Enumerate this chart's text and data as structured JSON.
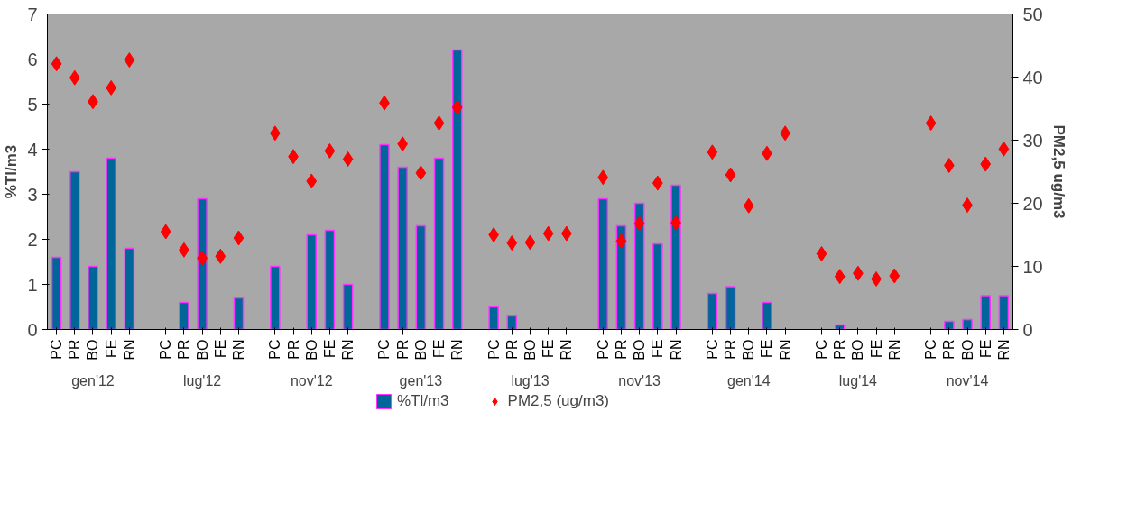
{
  "chart_data": {
    "type": "bar",
    "categories": [
      "PC",
      "PR",
      "BO",
      "FE",
      "RN",
      null,
      "PC",
      "PR",
      "BO",
      "FE",
      "RN",
      null,
      "PC",
      "PR",
      "BO",
      "FE",
      "RN",
      null,
      "PC",
      "PR",
      "BO",
      "FE",
      "RN",
      null,
      "PC",
      "PR",
      "BO",
      "FE",
      "RN",
      null,
      "PC",
      "PR",
      "BO",
      "FE",
      "RN",
      null,
      "PC",
      "PR",
      "BO",
      "FE",
      "RN",
      null,
      "PC",
      "PR",
      "BO",
      "FE",
      "RN",
      null,
      "PC",
      "PR",
      "BO",
      "FE",
      "RN"
    ],
    "annotations": [
      "gen'12",
      "lug'12",
      "nov'12",
      "gen'13",
      "lug'13",
      "nov'13",
      "gen'14",
      "lug'14",
      "nov'14"
    ],
    "ylabel": "%Tl/m3",
    "y2label": "PM2,5 ug/m3",
    "ylim": [
      0,
      7
    ],
    "yticks": [
      0,
      1,
      2,
      3,
      4,
      5,
      6,
      7
    ],
    "y2lim": [
      0,
      50
    ],
    "y2ticks": [
      0,
      10,
      20,
      30,
      40,
      50
    ],
    "legend": "bottom",
    "grid": false,
    "series": [
      {
        "name": "%Tl/m3",
        "color": "#006699",
        "values": [
          1.6,
          3.5,
          1.4,
          3.8,
          1.8,
          null,
          null,
          0.6,
          2.9,
          null,
          0.7,
          null,
          1.4,
          null,
          2.1,
          2.2,
          1.0,
          null,
          4.1,
          3.6,
          2.3,
          3.8,
          6.2,
          null,
          0.5,
          0.3,
          null,
          null,
          null,
          null,
          2.9,
          2.3,
          2.8,
          1.9,
          3.2,
          null,
          0.8,
          0.95,
          null,
          0.6,
          null,
          null,
          null,
          0.1,
          null,
          null,
          null,
          null,
          null,
          0.18,
          0.22,
          0.75,
          0.75
        ]
      },
      {
        "name": "PM2,5 (ug/m3)",
        "type": "scatter",
        "axis": "y2",
        "marker": "diamond",
        "color": "#ff0000",
        "values": [
          42.1,
          39.9,
          36.1,
          38.3,
          42.7,
          null,
          15.5,
          12.6,
          11.3,
          11.6,
          14.5,
          null,
          31.1,
          27.4,
          23.5,
          28.3,
          27.0,
          null,
          35.9,
          29.4,
          24.8,
          32.7,
          35.2,
          null,
          15.0,
          13.7,
          13.8,
          15.2,
          15.2,
          null,
          24.1,
          14.0,
          16.8,
          23.2,
          16.9,
          null,
          28.1,
          24.5,
          19.6,
          27.9,
          31.1,
          null,
          12.0,
          8.4,
          8.9,
          8.0,
          8.5,
          null,
          32.7,
          26.0,
          19.7,
          26.2,
          28.6
        ]
      }
    ]
  }
}
